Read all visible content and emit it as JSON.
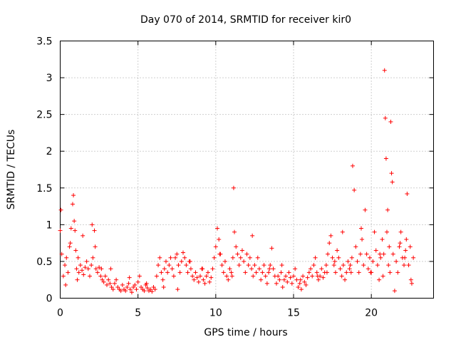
{
  "chart_data": {
    "type": "scatter",
    "title": "Day 070 of 2014, SRMTID for receiver kir0",
    "xlabel": "GPS time / hours",
    "ylabel": "SRMTID / TECUs",
    "xlim": [
      0,
      24
    ],
    "ylim": [
      0,
      3.5
    ],
    "xticks": [
      0,
      5,
      10,
      15,
      20
    ],
    "xtick_labels": [
      "0",
      "5",
      "10",
      "15",
      "20"
    ],
    "yticks": [
      0,
      0.5,
      1,
      1.5,
      2,
      2.5,
      3,
      3.5
    ],
    "ytick_labels": [
      "0",
      "0.5",
      "1",
      "1.5",
      "2",
      "2.5",
      "3",
      "3.5"
    ],
    "grid": true,
    "marker": "+",
    "color": "#ff0000",
    "series": [
      {
        "name": "SRMTID",
        "x": [
          0.0,
          0.1,
          0.2,
          0.3,
          0.4,
          0.5,
          0.6,
          0.7,
          0.8,
          0.85,
          0.9,
          0.95,
          1.0,
          1.05,
          1.1,
          1.2,
          1.3,
          1.4,
          1.5,
          1.6,
          1.7,
          1.8,
          1.9,
          2.0,
          2.1,
          2.2,
          2.25,
          2.3,
          2.4,
          2.5,
          2.6,
          2.7,
          2.8,
          2.9,
          3.0,
          3.1,
          3.2,
          3.3,
          3.4,
          3.5,
          3.6,
          3.7,
          3.8,
          3.9,
          4.0,
          4.1,
          4.2,
          4.3,
          4.4,
          4.5,
          4.6,
          4.7,
          4.8,
          4.9,
          5.0,
          5.1,
          5.2,
          5.3,
          5.4,
          5.5,
          5.6,
          5.7,
          5.8,
          5.9,
          6.0,
          6.1,
          6.2,
          6.3,
          6.4,
          6.5,
          6.6,
          6.7,
          6.8,
          6.9,
          7.0,
          7.1,
          7.2,
          7.3,
          7.4,
          7.5,
          7.6,
          7.7,
          7.8,
          7.9,
          8.0,
          8.1,
          8.2,
          8.3,
          8.4,
          8.5,
          8.6,
          8.7,
          8.8,
          8.9,
          9.0,
          9.1,
          9.2,
          9.3,
          9.4,
          9.5,
          9.6,
          9.7,
          9.8,
          9.9,
          10.0,
          10.1,
          10.2,
          10.3,
          10.4,
          10.5,
          10.6,
          10.7,
          10.8,
          10.9,
          11.0,
          11.1,
          11.15,
          11.2,
          11.3,
          11.4,
          11.5,
          11.6,
          11.7,
          11.8,
          11.9,
          12.0,
          12.1,
          12.2,
          12.3,
          12.4,
          12.5,
          12.6,
          12.7,
          12.8,
          12.9,
          13.0,
          13.1,
          13.2,
          13.3,
          13.4,
          13.5,
          13.6,
          13.7,
          13.8,
          13.9,
          14.0,
          14.1,
          14.2,
          14.3,
          14.4,
          14.5,
          14.6,
          14.7,
          14.8,
          14.9,
          15.0,
          15.1,
          15.2,
          15.3,
          15.4,
          15.5,
          15.6,
          15.7,
          15.8,
          15.9,
          16.0,
          16.1,
          16.2,
          16.3,
          16.4,
          16.5,
          16.6,
          16.7,
          16.8,
          16.9,
          17.0,
          17.1,
          17.2,
          17.3,
          17.4,
          17.5,
          17.6,
          17.7,
          17.8,
          17.9,
          18.0,
          18.1,
          18.2,
          18.3,
          18.4,
          18.5,
          18.6,
          18.7,
          18.75,
          18.8,
          18.9,
          19.0,
          19.1,
          19.2,
          19.3,
          19.4,
          19.5,
          19.6,
          19.7,
          19.8,
          19.9,
          20.0,
          20.1,
          20.2,
          20.3,
          20.4,
          20.5,
          20.6,
          20.7,
          20.75,
          20.8,
          20.85,
          20.9,
          20.95,
          21.0,
          21.05,
          21.1,
          21.15,
          21.2,
          21.25,
          21.3,
          21.4,
          21.5,
          21.6,
          21.7,
          21.8,
          21.9,
          22.0,
          22.1,
          22.2,
          22.25,
          22.3,
          22.4,
          22.5,
          22.6,
          22.7,
          0.05,
          0.35,
          0.65,
          1.15,
          1.45,
          2.05,
          2.65,
          3.25,
          4.45,
          5.55,
          6.65,
          7.55,
          8.35,
          9.15,
          10.25,
          11.05,
          12.35,
          13.45,
          14.25,
          15.45,
          16.55,
          17.15,
          17.65,
          18.15,
          18.65,
          19.35,
          19.95,
          20.55,
          21.35,
          21.85,
          22.15,
          22.55
        ],
        "y": [
          0.92,
          0.6,
          0.3,
          0.45,
          0.55,
          0.35,
          0.7,
          0.95,
          1.28,
          1.4,
          1.05,
          0.92,
          0.65,
          0.4,
          0.25,
          0.35,
          0.45,
          0.38,
          0.32,
          0.42,
          0.5,
          0.4,
          0.3,
          0.45,
          0.55,
          0.92,
          0.7,
          0.4,
          0.35,
          0.42,
          0.3,
          0.25,
          0.22,
          0.3,
          0.18,
          0.25,
          0.2,
          0.15,
          0.12,
          0.2,
          0.25,
          0.15,
          0.12,
          0.1,
          0.18,
          0.12,
          0.1,
          0.15,
          0.2,
          0.12,
          0.08,
          0.15,
          0.18,
          0.12,
          0.22,
          0.3,
          0.15,
          0.12,
          0.1,
          0.18,
          0.14,
          0.1,
          0.12,
          0.09,
          0.15,
          0.12,
          0.3,
          0.45,
          0.55,
          0.35,
          0.25,
          0.4,
          0.5,
          0.35,
          0.45,
          0.55,
          0.4,
          0.3,
          0.55,
          0.6,
          0.45,
          0.35,
          0.5,
          0.62,
          0.55,
          0.45,
          0.35,
          0.5,
          0.4,
          0.3,
          0.25,
          0.35,
          0.28,
          0.22,
          0.3,
          0.4,
          0.25,
          0.2,
          0.3,
          0.35,
          0.22,
          0.28,
          0.4,
          0.55,
          0.7,
          0.95,
          0.8,
          0.6,
          0.45,
          0.35,
          0.5,
          0.3,
          0.25,
          0.4,
          0.35,
          0.55,
          1.5,
          0.9,
          0.7,
          0.6,
          0.45,
          0.55,
          0.65,
          0.5,
          0.35,
          0.6,
          0.45,
          0.55,
          0.4,
          0.3,
          0.45,
          0.35,
          0.55,
          0.4,
          0.25,
          0.35,
          0.45,
          0.3,
          0.2,
          0.35,
          0.45,
          0.68,
          0.4,
          0.3,
          0.2,
          0.3,
          0.25,
          0.35,
          0.15,
          0.25,
          0.3,
          0.22,
          0.35,
          0.28,
          0.2,
          0.3,
          0.4,
          0.25,
          0.15,
          0.2,
          0.12,
          0.3,
          0.22,
          0.18,
          0.28,
          0.35,
          0.4,
          0.3,
          0.45,
          0.55,
          0.35,
          0.25,
          0.3,
          0.4,
          0.28,
          0.35,
          0.45,
          0.6,
          0.75,
          0.85,
          0.55,
          0.45,
          0.35,
          0.65,
          0.55,
          0.4,
          0.3,
          0.45,
          0.25,
          0.35,
          0.5,
          0.4,
          0.35,
          0.55,
          1.8,
          1.47,
          0.7,
          0.5,
          0.35,
          0.6,
          0.8,
          0.45,
          1.2,
          0.6,
          0.4,
          0.55,
          0.35,
          0.5,
          0.9,
          0.65,
          0.45,
          0.25,
          0.55,
          0.8,
          0.3,
          0.6,
          3.1,
          2.45,
          1.9,
          0.9,
          1.2,
          0.45,
          0.7,
          0.35,
          2.4,
          1.7,
          0.6,
          0.1,
          0.5,
          0.35,
          0.7,
          0.9,
          0.55,
          0.45,
          0.65,
          0.8,
          1.42,
          0.45,
          0.7,
          0.2,
          0.55,
          1.2,
          0.18,
          0.75,
          0.55,
          0.85,
          1.0,
          0.4,
          0.4,
          0.28,
          0.2,
          0.15,
          0.12,
          0.5,
          0.4,
          0.6,
          0.3,
          0.85,
          0.4,
          0.45,
          0.25,
          0.3,
          0.35,
          0.5,
          0.9,
          0.45,
          0.95,
          0.35,
          0.6,
          1.58,
          0.75,
          0.55,
          0.25
        ]
      }
    ]
  }
}
